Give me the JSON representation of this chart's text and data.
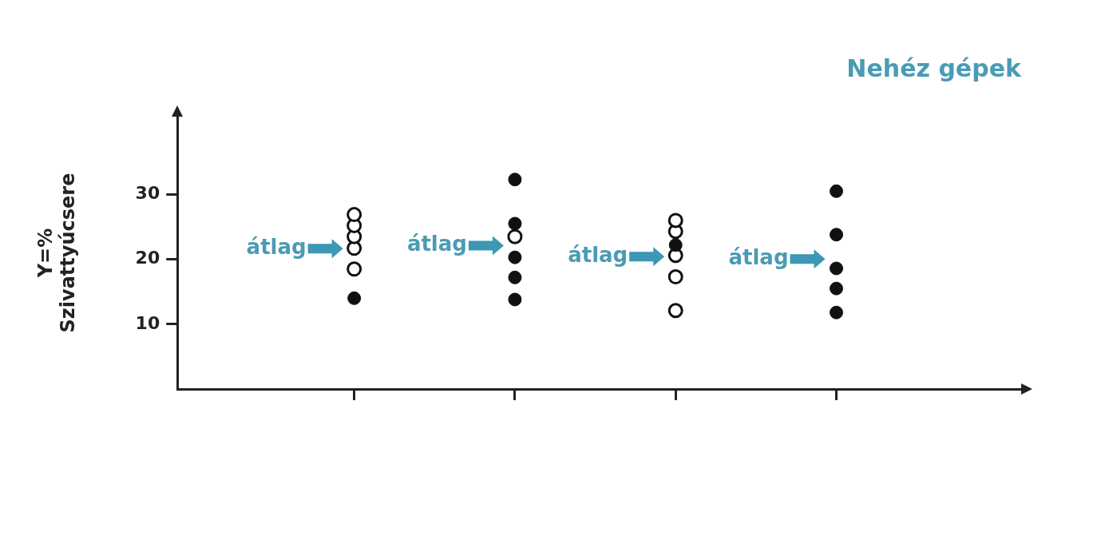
{
  "chart_data": {
    "type": "scatter",
    "title": "Nehéz gépek",
    "ylabel": "Y=%\nSzivattyúcsere",
    "categories": [
      null,
      null,
      null,
      null
    ],
    "ylim": [
      0,
      42
    ],
    "yticks": [
      10,
      20,
      30
    ],
    "tick_labels": "y",
    "grid": false,
    "legend": false,
    "marker": "circle",
    "series": [
      {
        "values": [
          26.9,
          32.3,
          26.0,
          30.5
        ],
        "colors": [
          "#ffffff",
          "#111111",
          "#ffffff",
          "#111111"
        ]
      },
      {
        "values": [
          25.2,
          25.5,
          24.3,
          23.8
        ],
        "colors": [
          "#ffffff",
          "#111111",
          "#ffffff",
          "#111111"
        ]
      },
      {
        "values": [
          23.5,
          23.5,
          22.2,
          18.6
        ],
        "colors": [
          "#ffffff",
          "#ffffff",
          "#111111",
          "#111111"
        ]
      },
      {
        "values": [
          21.7,
          20.3,
          20.6,
          15.5
        ],
        "colors": [
          "#ffffff",
          "#111111",
          "#ffffff",
          "#111111"
        ]
      },
      {
        "values": [
          18.5,
          17.2,
          17.3,
          11.8
        ],
        "colors": [
          "#ffffff",
          "#111111",
          "#ffffff",
          "#111111"
        ]
      },
      {
        "values": [
          14.0,
          13.8,
          12.1,
          null
        ],
        "colors": [
          "#111111",
          "#111111",
          "#ffffff",
          null
        ]
      }
    ],
    "annotations": [
      "átlag",
      "átlag",
      "átlag",
      "átlag"
    ]
  }
}
